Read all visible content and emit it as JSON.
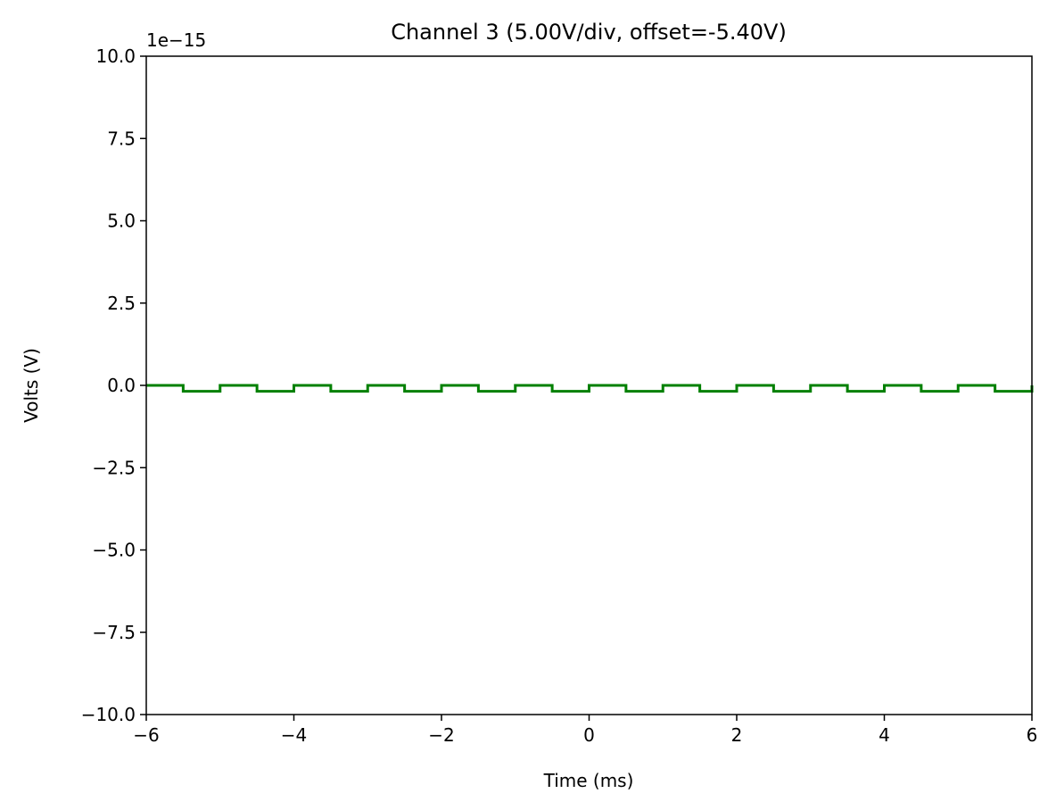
{
  "chart_data": {
    "type": "line",
    "title": "Channel 3 (5.00V/div, offset=-5.40V)",
    "xlabel": "Time (ms)",
    "ylabel": "Volts (V)",
    "y_scale_label": "1e−15",
    "xlim": [
      -6,
      6
    ],
    "ylim": [
      -10.0,
      10.0
    ],
    "x_ticks": [
      -6,
      -4,
      -2,
      0,
      2,
      4,
      6
    ],
    "x_tick_labels": [
      "−6",
      "−4",
      "−2",
      "0",
      "2",
      "4",
      "6"
    ],
    "y_ticks": [
      -10.0,
      -7.5,
      -5.0,
      -2.5,
      0.0,
      2.5,
      5.0,
      7.5,
      10.0
    ],
    "y_tick_labels": [
      "−10.0",
      "−7.5",
      "−5.0",
      "−2.5",
      "0.0",
      "2.5",
      "5.0",
      "7.5",
      "10.0"
    ],
    "grid": false,
    "series": [
      {
        "color": "#008000",
        "style": "step",
        "x": [
          -6.0,
          -5.5,
          -5.5,
          -5.0,
          -5.0,
          -4.5,
          -4.5,
          -4.0,
          -4.0,
          -3.5,
          -3.5,
          -3.0,
          -3.0,
          -2.5,
          -2.5,
          -2.0,
          -2.0,
          -1.5,
          -1.5,
          -1.0,
          -1.0,
          -0.5,
          -0.5,
          0.0,
          0.0,
          0.5,
          0.5,
          1.0,
          1.0,
          1.5,
          1.5,
          2.0,
          2.0,
          2.5,
          2.5,
          3.0,
          3.0,
          3.5,
          3.5,
          4.0,
          4.0,
          4.5,
          4.5,
          5.0,
          5.0,
          5.5,
          5.5,
          6.0,
          6.0
        ],
        "y": [
          0.0,
          0.0,
          -0.18,
          -0.18,
          0.0,
          0.0,
          -0.18,
          -0.18,
          0.0,
          0.0,
          -0.18,
          -0.18,
          0.0,
          0.0,
          -0.18,
          -0.18,
          0.0,
          0.0,
          -0.18,
          -0.18,
          0.0,
          0.0,
          -0.18,
          -0.18,
          0.0,
          0.0,
          -0.18,
          -0.18,
          0.0,
          0.0,
          -0.18,
          -0.18,
          0.0,
          0.0,
          -0.18,
          -0.18,
          0.0,
          0.0,
          -0.18,
          -0.18,
          0.0,
          0.0,
          -0.18,
          -0.18,
          0.0,
          0.0,
          -0.18,
          -0.18,
          0.0
        ]
      }
    ]
  }
}
